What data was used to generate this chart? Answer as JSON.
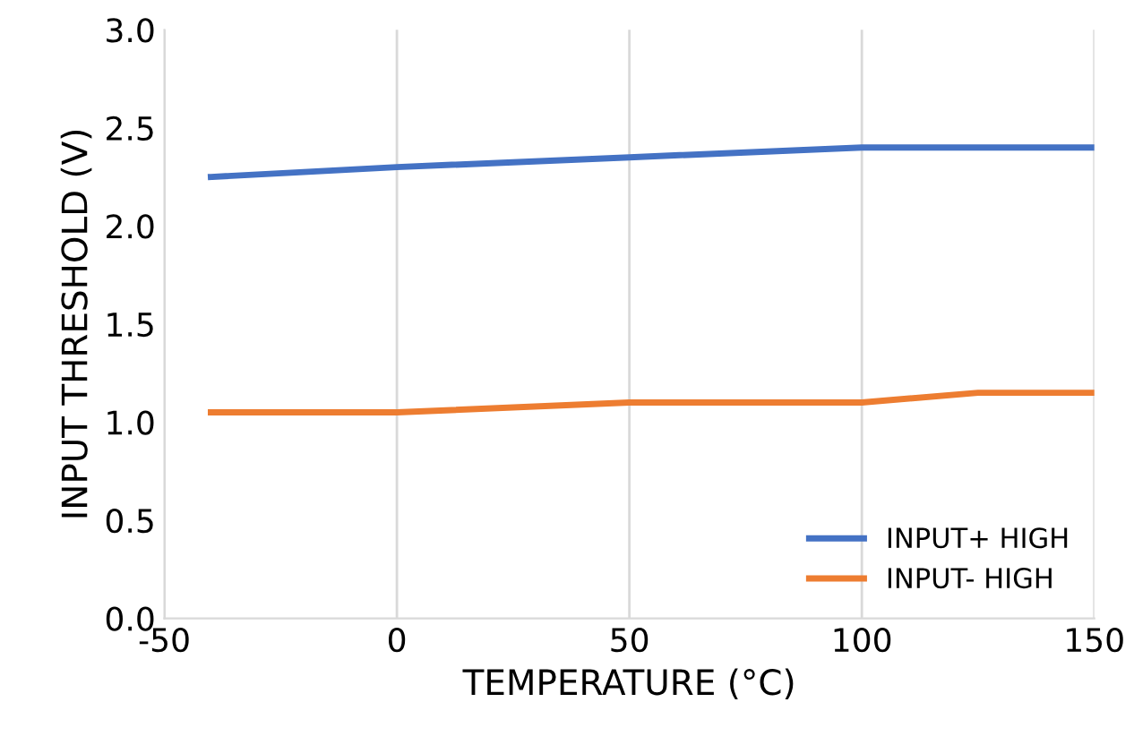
{
  "chart_data": {
    "type": "line",
    "xlabel": "TEMPERATURE (°C)",
    "ylabel": "INPUT THRESHOLD (V)",
    "series": [
      {
        "name": "INPUT+ HIGH",
        "color": "#4472c4",
        "x": [
          -40,
          0,
          50,
          100,
          110,
          150
        ],
        "values": [
          2.25,
          2.3,
          2.35,
          2.4,
          2.4,
          2.4
        ]
      },
      {
        "name": "INPUT- HIGH",
        "color": "#ed7d31",
        "x": [
          -40,
          0,
          50,
          100,
          125,
          150
        ],
        "values": [
          1.05,
          1.05,
          1.1,
          1.1,
          1.15,
          1.15
        ]
      }
    ],
    "xlim": [
      -50,
      150
    ],
    "xticks": [
      -50,
      0,
      50,
      100,
      150
    ],
    "ylim": [
      0,
      3.0
    ],
    "yticks": [
      {
        "value": 0,
        "label": "0.0"
      },
      0.5,
      {
        "value": 1,
        "label": "1.0"
      },
      1.5,
      {
        "value": 2,
        "label": "2.0"
      },
      2.5,
      {
        "value": 3,
        "label": "3.0"
      }
    ],
    "grid": "x",
    "legend": "bottom right",
    "marker": "none",
    "line_style": "solid"
  }
}
